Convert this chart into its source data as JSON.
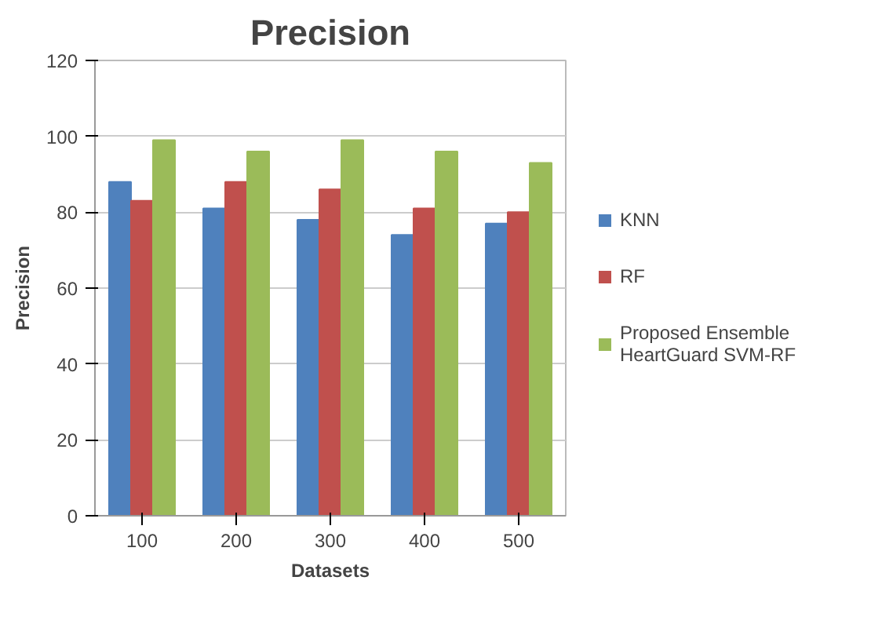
{
  "chart_data": {
    "type": "bar",
    "title": "Precision",
    "xlabel": "Datasets",
    "ylabel": "Precision",
    "categories": [
      "100",
      "200",
      "300",
      "400",
      "500"
    ],
    "series": [
      {
        "name": "KNN",
        "color": "#4f81bd",
        "values": [
          88,
          81,
          78,
          74,
          77
        ]
      },
      {
        "name": "RF",
        "color": "#c0504d",
        "values": [
          83,
          88,
          86,
          81,
          80
        ]
      },
      {
        "name": "Proposed Ensemble HeartGuard SVM-RF",
        "color": "#9bbb59",
        "values": [
          99,
          96,
          99,
          96,
          93
        ]
      }
    ],
    "ylim": [
      0,
      120
    ],
    "yticks": [
      0,
      20,
      40,
      60,
      80,
      100,
      120
    ],
    "grid": "y",
    "legend": "right"
  }
}
